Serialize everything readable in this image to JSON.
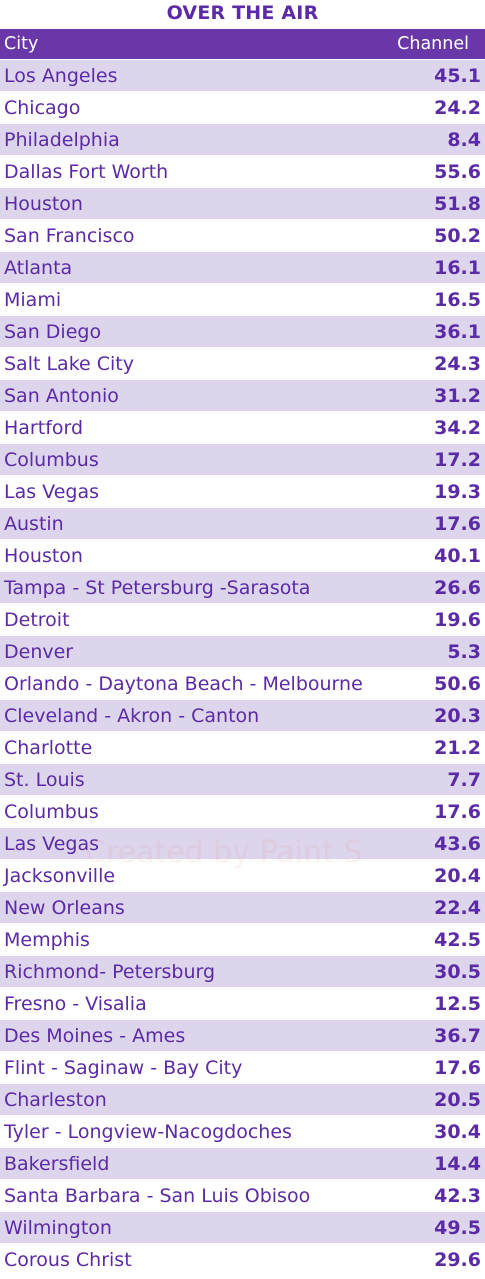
{
  "title": "OVER THE AIR",
  "header": {
    "city": "City",
    "channel": "Channel"
  },
  "watermark": "Created by Paint S",
  "colors": {
    "accent": "#6a37a8",
    "text": "#5b2aa6",
    "stripe": "#ddd5ec"
  },
  "rows": [
    {
      "city": "Los Angeles",
      "channel": "45.1"
    },
    {
      "city": "Chicago",
      "channel": "24.2"
    },
    {
      "city": "Philadelphia",
      "channel": "8.4"
    },
    {
      "city": "Dallas Fort Worth",
      "channel": "55.6"
    },
    {
      "city": "Houston",
      "channel": "51.8"
    },
    {
      "city": "San Francisco",
      "channel": "50.2"
    },
    {
      "city": "Atlanta",
      "channel": "16.1"
    },
    {
      "city": "Miami",
      "channel": "16.5"
    },
    {
      "city": "San Diego",
      "channel": "36.1"
    },
    {
      "city": "Salt Lake City",
      "channel": "24.3"
    },
    {
      "city": "San Antonio",
      "channel": "31.2"
    },
    {
      "city": "Hartford",
      "channel": "34.2"
    },
    {
      "city": "Columbus",
      "channel": "17.2"
    },
    {
      "city": "Las Vegas",
      "channel": "19.3"
    },
    {
      "city": "Austin",
      "channel": "17.6"
    },
    {
      "city": "Houston",
      "channel": "40.1"
    },
    {
      "city": "Tampa - St Petersburg -Sarasota",
      "channel": "26.6"
    },
    {
      "city": "Detroit",
      "channel": "19.6"
    },
    {
      "city": "Denver",
      "channel": "5.3"
    },
    {
      "city": "Orlando - Daytona Beach - Melbourne",
      "channel": "50.6"
    },
    {
      "city": "Cleveland - Akron - Canton",
      "channel": "20.3"
    },
    {
      "city": "Charlotte",
      "channel": "21.2"
    },
    {
      "city": "St. Louis",
      "channel": "7.7"
    },
    {
      "city": "Columbus",
      "channel": "17.6"
    },
    {
      "city": "Las Vegas",
      "channel": "43.6"
    },
    {
      "city": "Jacksonville",
      "channel": "20.4"
    },
    {
      "city": "New Orleans",
      "channel": "22.4"
    },
    {
      "city": "Memphis",
      "channel": "42.5"
    },
    {
      "city": "Richmond- Petersburg",
      "channel": "30.5"
    },
    {
      "city": "Fresno - Visalia",
      "channel": "12.5"
    },
    {
      "city": "Des Moines - Ames",
      "channel": "36.7"
    },
    {
      "city": "Flint - Saginaw - Bay City",
      "channel": "17.6"
    },
    {
      "city": "Charleston",
      "channel": "20.5"
    },
    {
      "city": "Tyler - Longview-Nacogdoches",
      "channel": "30.4"
    },
    {
      "city": "Bakersfield",
      "channel": "14.4"
    },
    {
      "city": "Santa Barbara - San Luis Obisoo",
      "channel": "42.3"
    },
    {
      "city": "Wilmington",
      "channel": "49.5"
    },
    {
      "city": "Corous Christ",
      "channel": "29.6"
    }
  ]
}
